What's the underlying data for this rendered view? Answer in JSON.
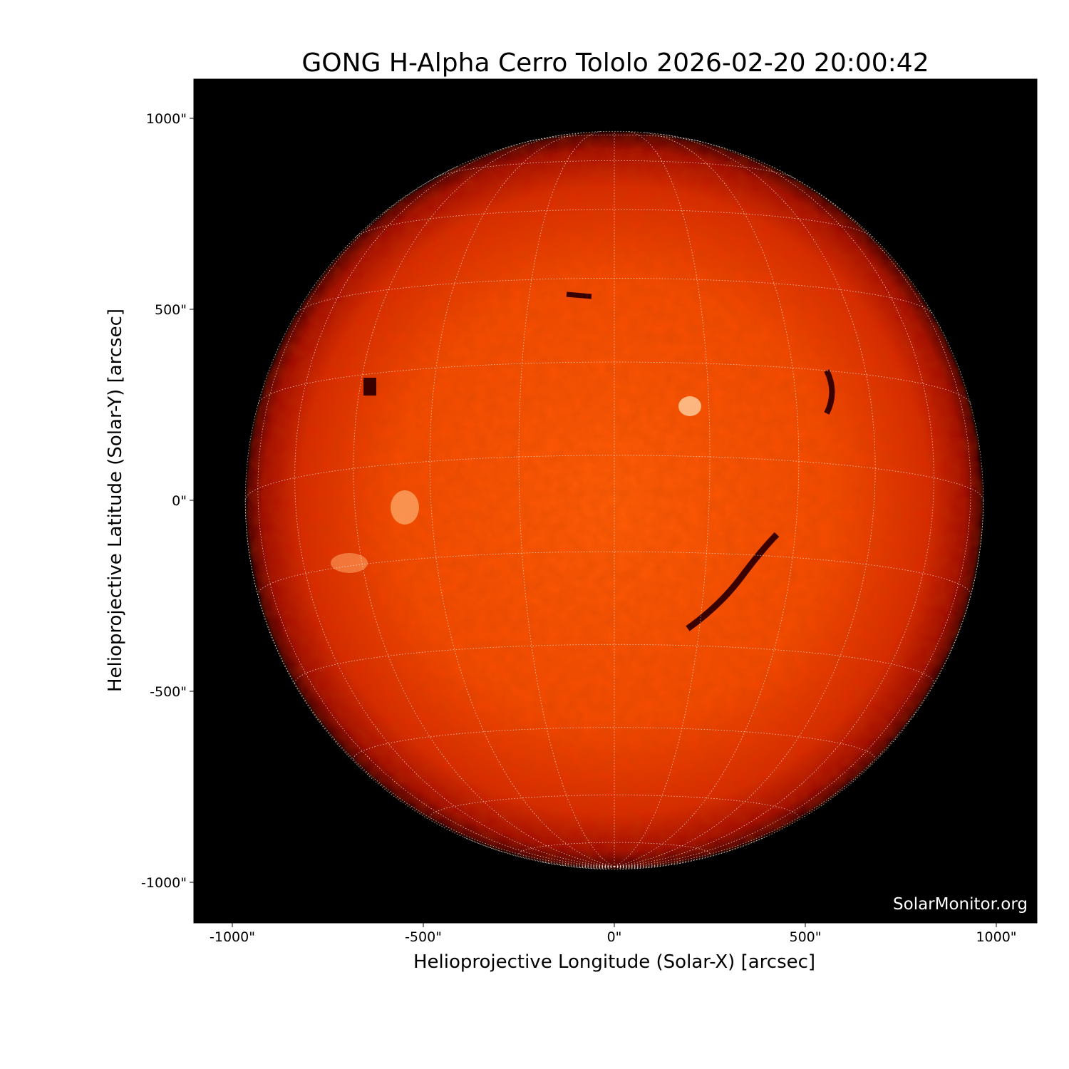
{
  "chart_data": {
    "type": "image",
    "title": "GONG H-Alpha Cerro Tololo 2026-02-20 20:00:42",
    "xlabel": "Helioprojective Longitude (Solar-X) [arcsec]",
    "ylabel": "Helioprojective Latitude (Solar-Y) [arcsec]",
    "xlim": [
      -1100,
      1105
    ],
    "ylim": [
      -1100,
      1105
    ],
    "xticks": [
      -1000,
      -500,
      0,
      500,
      1000
    ],
    "yticks": [
      -1000,
      -500,
      0,
      500,
      1000
    ],
    "xtick_labels": [
      "-1000\"",
      "-500\"",
      "0\"",
      "500\"",
      "1000\""
    ],
    "ytick_labels": [
      "-1000\"",
      "-500\"",
      "0\"",
      "500\"",
      "1000\""
    ],
    "solar_radius_arcsec": 966,
    "heliographic_grid_spacing_deg": 15,
    "colormap": [
      "#000000",
      "#8a0000",
      "#e02a00",
      "#ff6a10",
      "#ffd0a0"
    ],
    "background": "#000000",
    "grid": true
  },
  "watermark": "SolarMonitor.org"
}
